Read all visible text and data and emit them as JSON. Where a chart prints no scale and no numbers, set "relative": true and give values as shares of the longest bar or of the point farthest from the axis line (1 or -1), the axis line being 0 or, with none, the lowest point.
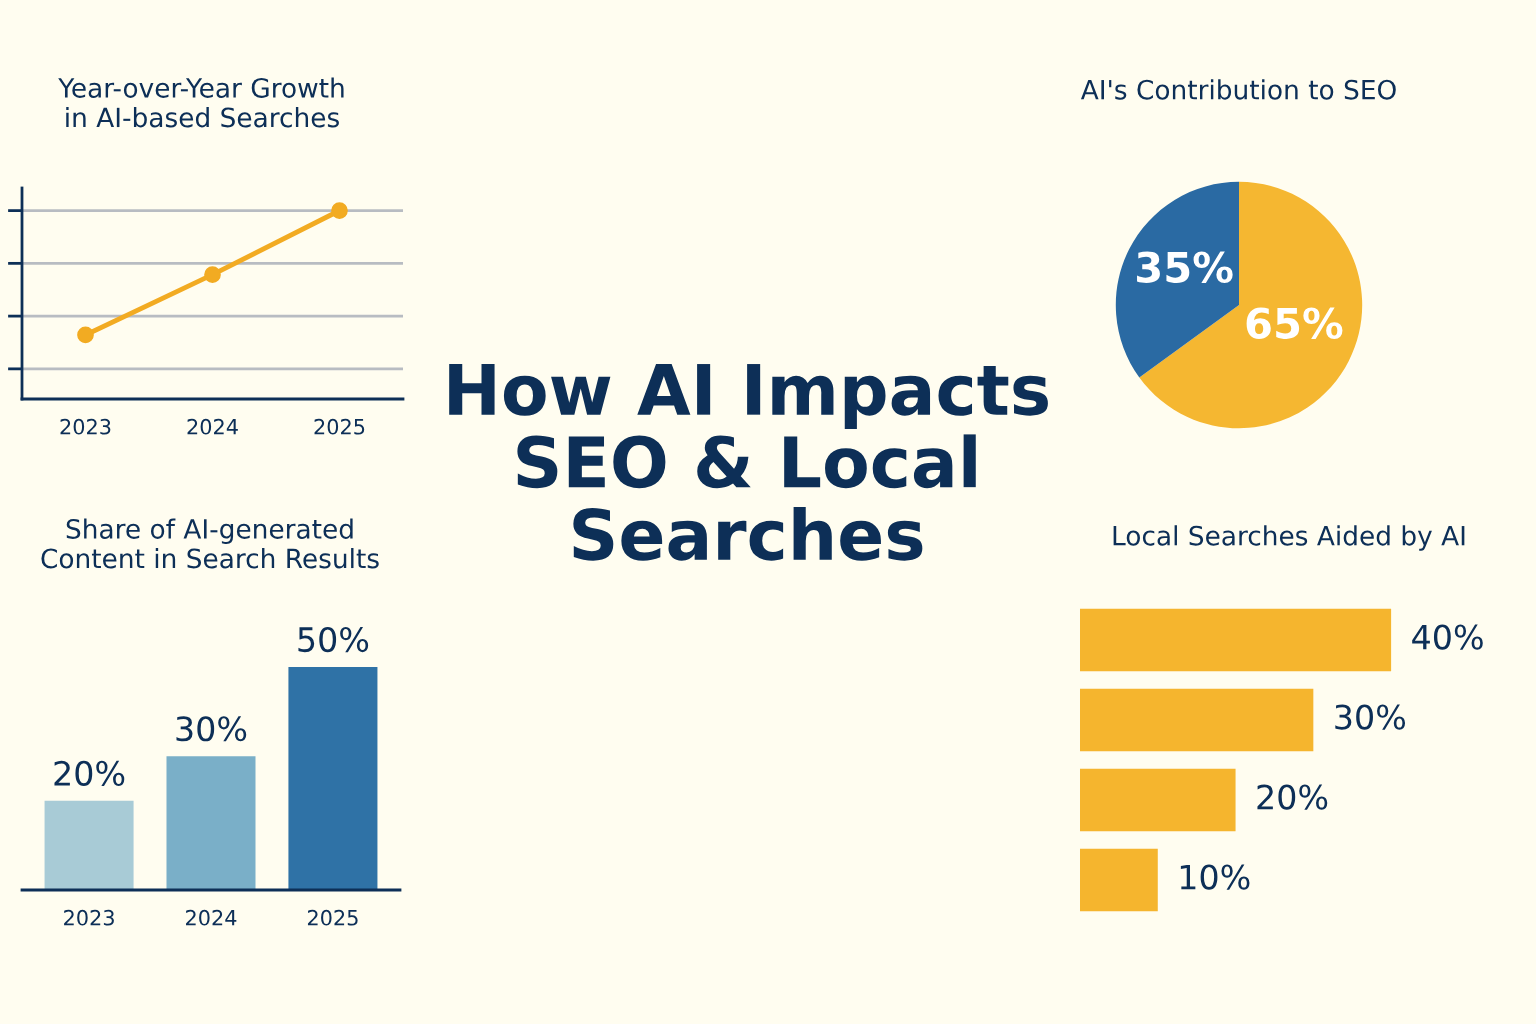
{
  "chart_data": [
    {
      "type": "line",
      "title": "Year-over-Year Growth\nin AI-based Searches",
      "categories": [
        "2023",
        "2024",
        "2025"
      ],
      "relative": true,
      "grid": "y",
      "marker": "circle",
      "series": [
        {
          "color": "#f2ab22",
          "values": [
            0.34,
            0.66,
            1
          ]
        }
      ]
    },
    {
      "type": "other",
      "title": "How AI Impacts\nSEO & Local\nSearches"
    },
    {
      "type": "pie",
      "title": "AI's Contribution to SEO",
      "categories": [
        null,
        null
      ],
      "values": [
        65,
        35
      ],
      "colors": [
        "#f5b731",
        "#2a6aa3"
      ],
      "value_labels": [
        "65%",
        "35%"
      ]
    },
    {
      "type": "bar",
      "title": "Share of AI-generated\nContent in Search Results",
      "categories": [
        "2023",
        "2024",
        "2025"
      ],
      "values": [
        20,
        30,
        50
      ],
      "colors": [
        "#a8cbd6",
        "#7aafc8",
        "#2f72a6"
      ],
      "value_labels": [
        "20%",
        "30%",
        "50%"
      ]
    },
    {
      "type": "bar",
      "orientation": "horizontal",
      "title": "Local Searches Aided by AI",
      "categories": [
        null,
        null,
        null,
        null
      ],
      "values": [
        40,
        30,
        20,
        10
      ],
      "color": "#f5b52e",
      "value_labels": [
        "40%",
        "30%",
        "20%",
        "10%"
      ]
    }
  ]
}
